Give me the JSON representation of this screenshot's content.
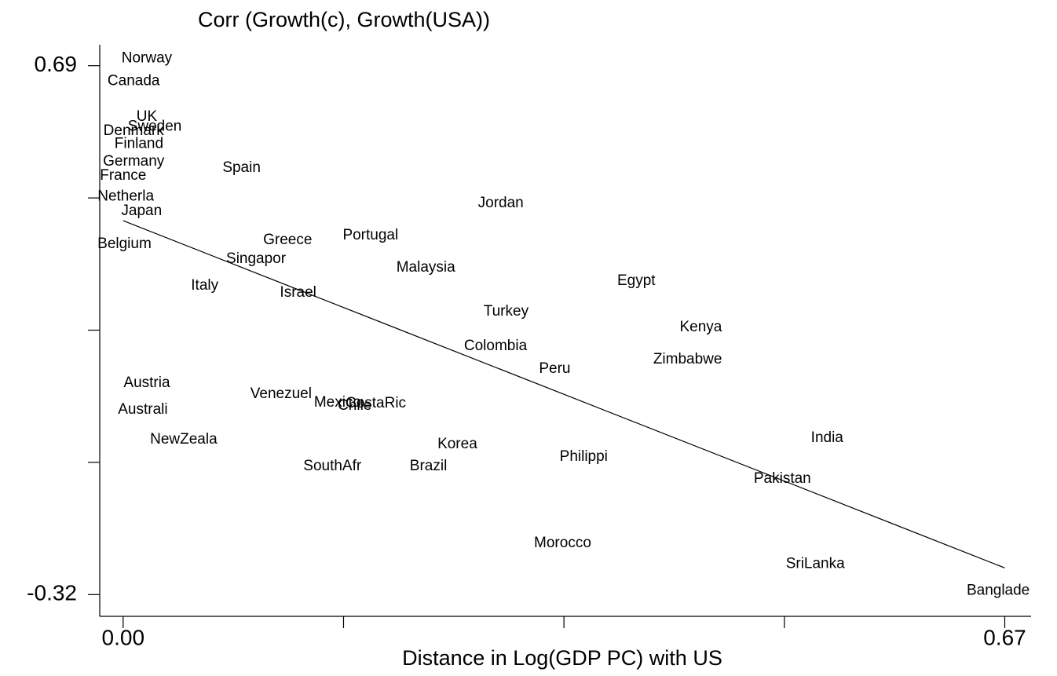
{
  "chart_data": {
    "type": "text-scatter",
    "title": "Corr (Growth(c), Growth(USA))",
    "x_label": "Distance in Log(GDP PC) with US",
    "labels": [
      "Norway",
      "Canada",
      "UK",
      "Sweden",
      "Denmark",
      "Finland",
      "Germany",
      "France",
      "Spain",
      "Netherla",
      "Japan",
      "Jordan",
      "Belgium",
      "Greece",
      "Portugal",
      "Singapor",
      "Malaysia",
      "Italy",
      "Israel",
      "Egypt",
      "Turkey",
      "Kenya",
      "Colombia",
      "Zimbabwe",
      "Peru",
      "Austria",
      "Venezuel",
      "Mexico",
      "CostaRic",
      "Chile",
      "Australi",
      "NewZeala",
      "Korea",
      "India",
      "Philippi",
      "SouthAfr",
      "Brazil",
      "Pakistan",
      "Morocco",
      "SriLanka",
      "Banglade"
    ],
    "x": [
      0.018,
      0.008,
      0.018,
      0.024,
      0.008,
      0.012,
      0.008,
      0.0,
      0.09,
      0.002,
      0.014,
      0.287,
      0.001,
      0.125,
      0.188,
      0.101,
      0.23,
      0.062,
      0.133,
      0.39,
      0.291,
      0.439,
      0.283,
      0.429,
      0.328,
      0.018,
      0.12,
      0.163,
      0.192,
      0.176,
      0.015,
      0.046,
      0.254,
      0.535,
      0.35,
      0.159,
      0.232,
      0.501,
      0.334,
      0.526,
      0.665
    ],
    "y": [
      0.704,
      0.66,
      0.592,
      0.573,
      0.565,
      0.54,
      0.507,
      0.48,
      0.495,
      0.44,
      0.412,
      0.427,
      0.349,
      0.357,
      0.366,
      0.321,
      0.304,
      0.27,
      0.256,
      0.279,
      0.22,
      0.19,
      0.154,
      0.129,
      0.111,
      0.084,
      0.063,
      0.046,
      0.045,
      0.04,
      0.033,
      -0.024,
      -0.033,
      -0.021,
      -0.057,
      -0.075,
      -0.075,
      -0.099,
      -0.222,
      -0.262,
      -0.313
    ],
    "fit": {
      "x": [
        0,
        0.67
      ],
      "y": [
        0.394,
        -0.269
      ]
    },
    "xlim": [
      -0.016,
      0.69
    ],
    "ylim": [
      -0.36,
      0.73
    ],
    "xticks": [
      {
        "value": 0,
        "label": "0.00"
      },
      {
        "value": 0.1675,
        "label": null
      },
      {
        "value": 0.335,
        "label": null
      },
      {
        "value": 0.5025,
        "label": null
      },
      {
        "value": 0.67,
        "label": "0.67"
      }
    ],
    "yticks": [
      {
        "value": 0.69,
        "label": "0.69"
      },
      {
        "value": 0.4375,
        "label": null
      },
      {
        "value": 0.185,
        "label": null
      },
      {
        "value": -0.0675,
        "label": null
      },
      {
        "value": -0.32,
        "label": "-0.32"
      }
    ],
    "color": "#000000"
  }
}
